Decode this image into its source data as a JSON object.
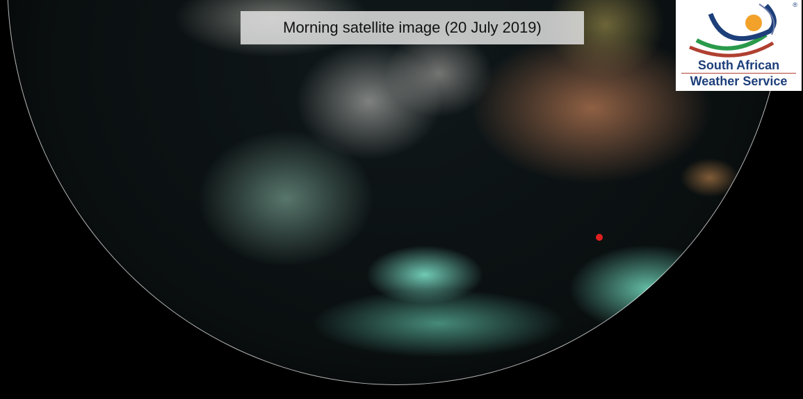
{
  "caption": "Morning satellite image (20 July 2019)",
  "logo": {
    "line1": "South African",
    "line2": "Weather Service",
    "registered_mark": "®",
    "colors": {
      "text": "#1d3f7a",
      "sun": "#f2a22a",
      "green": "#2a9a4a",
      "red": "#b04030"
    }
  }
}
